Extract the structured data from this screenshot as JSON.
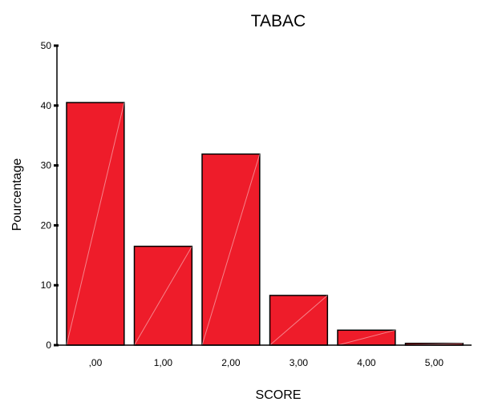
{
  "chart_data": {
    "type": "bar",
    "title": "TABAC",
    "xlabel": "SCORE",
    "ylabel": "Pourcentage",
    "categories": [
      ",00",
      "1,00",
      "2,00",
      "3,00",
      "4,00",
      "5,00"
    ],
    "values": [
      40.5,
      16.5,
      31.9,
      8.3,
      2.5,
      0.3
    ],
    "ylim": [
      0,
      50
    ],
    "yticks": [
      0,
      10,
      20,
      30,
      40,
      50
    ],
    "grid": false,
    "bar_color": "#ee1c2a"
  }
}
